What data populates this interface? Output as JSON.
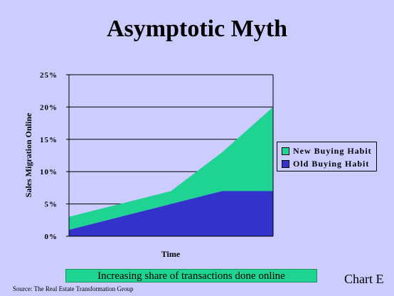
{
  "slide": {
    "title": "Asymptotic Myth",
    "caption": "Increasing share of transactions done online",
    "chart_tag": "Chart E",
    "source": "Source: The Real Estate Transformation Group"
  },
  "colors": {
    "background": "#ccccff",
    "old_series": "#3333cc",
    "new_series": "#1fd392",
    "caption_fill": "#1fd392"
  },
  "chart_data": {
    "type": "area",
    "stacked": true,
    "x": [
      0,
      1,
      2,
      3,
      4
    ],
    "xlabel": "Time",
    "ylabel": "Sales Migration Online",
    "ylim": [
      0,
      25
    ],
    "yticks": [
      "0%",
      "5%",
      "10%",
      "15%",
      "20%",
      "25%"
    ],
    "grid": true,
    "legend_position": "right",
    "series": [
      {
        "name": "Old Buying Habit",
        "color": "#3333cc",
        "values": [
          1,
          3,
          5,
          7,
          7
        ]
      },
      {
        "name": "New Buying Habit",
        "color": "#1fd392",
        "values": [
          2,
          2,
          2,
          6,
          13
        ]
      }
    ]
  }
}
